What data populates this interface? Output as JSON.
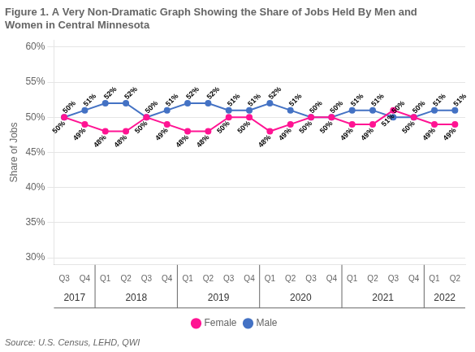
{
  "chart_data": {
    "type": "line",
    "title": "Figure 1. A Very Non-Dramatic Graph Showing the Share of Jobs Held By Men and\nWomen in Central Minnesota",
    "y_label": "Share of Jobs",
    "source": "Source: U.S. Census, LEHD, QWI",
    "categories": [
      "Q3",
      "Q4",
      "Q1",
      "Q2",
      "Q3",
      "Q4",
      "Q1",
      "Q2",
      "Q3",
      "Q4",
      "Q1",
      "Q2",
      "Q3",
      "Q4",
      "Q1",
      "Q2",
      "Q3",
      "Q4",
      "Q1",
      "Q2"
    ],
    "annotations": [
      {
        "text": "2017",
        "x": 0.5
      },
      {
        "text": "2018",
        "x": 3.5
      },
      {
        "text": "2019",
        "x": 7.5
      },
      {
        "text": "2020",
        "x": 11.5
      },
      {
        "text": "2021",
        "x": 15.5
      },
      {
        "text": "2022",
        "x": 18.5
      }
    ],
    "series": [
      {
        "name": "Female",
        "color": "#FF1493",
        "marker": "circle",
        "values": [
          50,
          49,
          48,
          48,
          50,
          49,
          48,
          48,
          50,
          50,
          48,
          49,
          50,
          50,
          49,
          49,
          51,
          50,
          49,
          49
        ],
        "value_labels": [
          "50%",
          "49%",
          "48%",
          "48%",
          "50%",
          "49%",
          "48%",
          "48%",
          "50%",
          "50%",
          "48%",
          "49%",
          "50%",
          "50%",
          "49%",
          "49%",
          "51%",
          "50%",
          "49%",
          "49%"
        ]
      },
      {
        "name": "Male",
        "color": "#4472C4",
        "marker": "circle",
        "values": [
          50,
          51,
          52,
          52,
          50,
          51,
          52,
          52,
          51,
          51,
          52,
          51,
          50,
          50,
          51,
          51,
          50,
          50,
          51,
          51
        ],
        "value_labels": [
          "50%",
          "51%",
          "52%",
          "52%",
          "50%",
          "51%",
          "52%",
          "52%",
          "51%",
          "51%",
          "52%",
          "51%",
          "50%",
          "50%",
          "51%",
          "51%",
          "50%",
          "50%",
          "51%",
          "51%"
        ]
      }
    ],
    "ylim": [
      29,
      61
    ],
    "yticks": [
      {
        "value": 30,
        "label": "30%"
      },
      {
        "value": 35,
        "label": "35%"
      },
      {
        "value": 40,
        "label": "40%"
      },
      {
        "value": 45,
        "label": "45%"
      },
      {
        "value": 50,
        "label": "50%"
      },
      {
        "value": 55,
        "label": "55%"
      },
      {
        "value": 60,
        "label": "60%"
      }
    ],
    "grid": "y",
    "legend": "bottom",
    "data_labels": true
  }
}
